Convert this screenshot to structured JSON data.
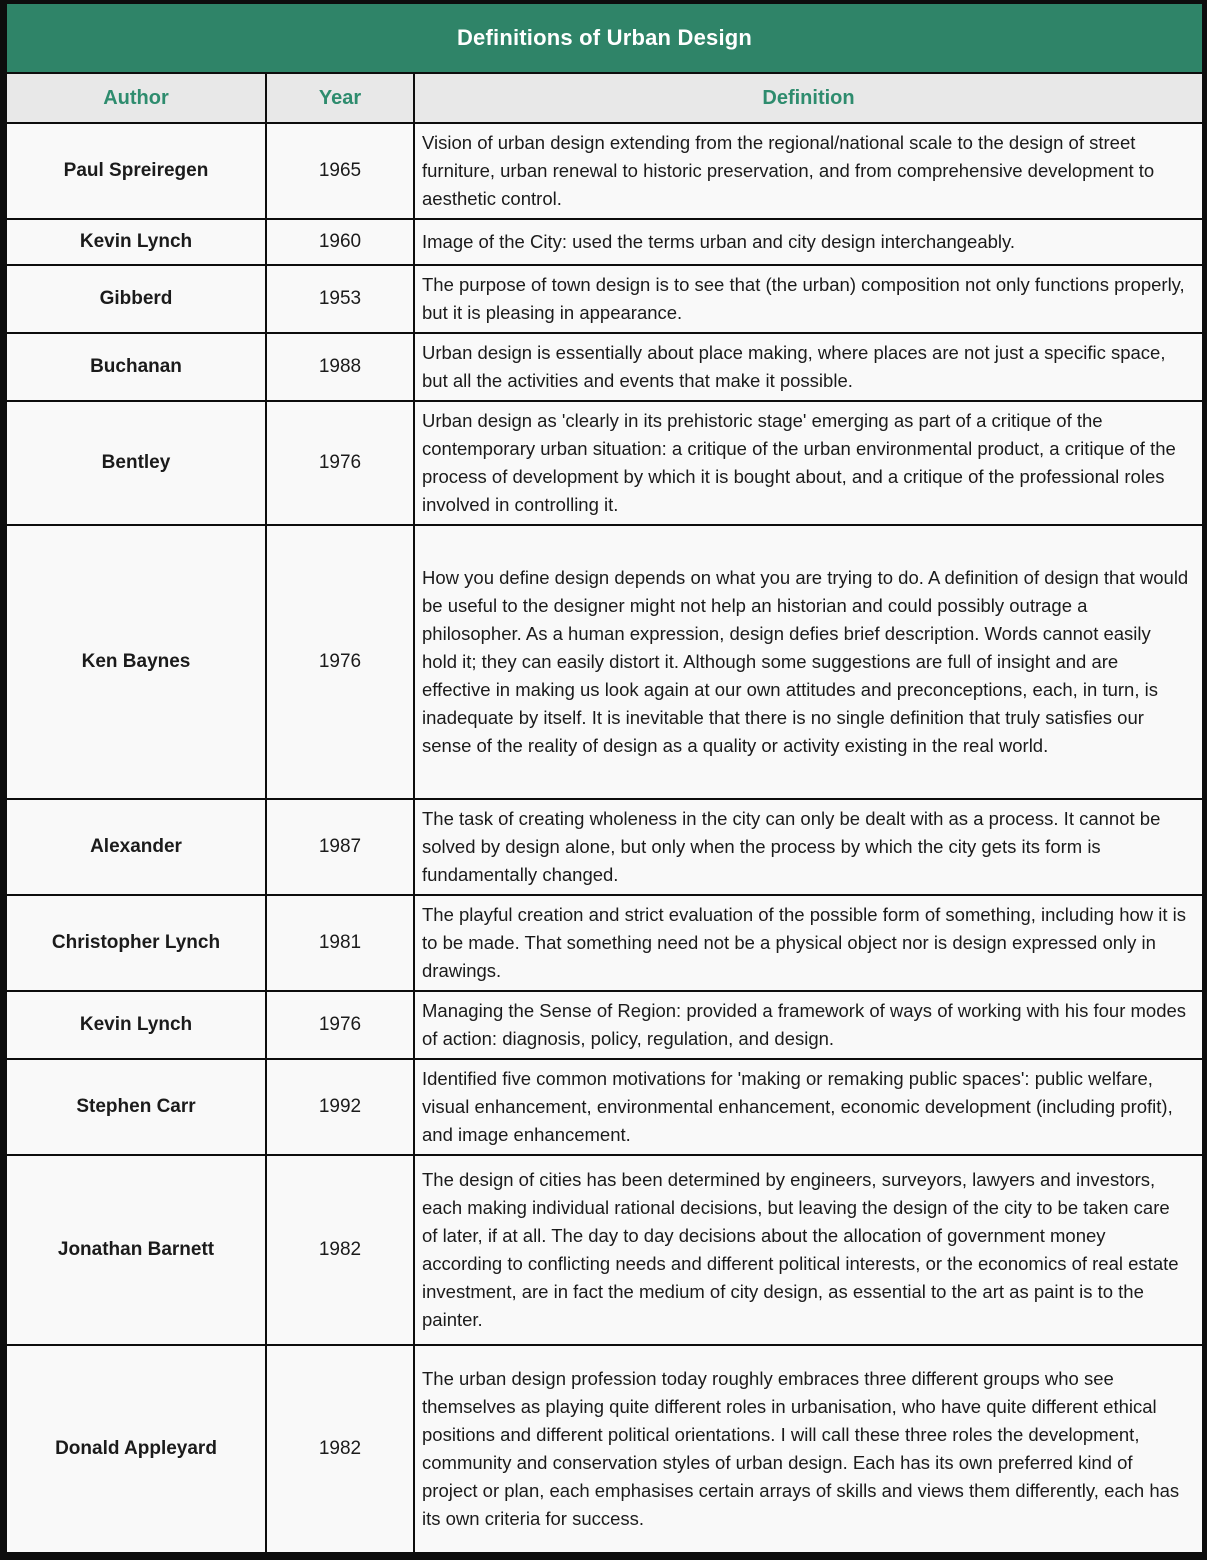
{
  "title": "Definitions of Urban Design",
  "columns": {
    "author": "Author",
    "year": "Year",
    "definition": "Definition"
  },
  "colors": {
    "title_bar_bg": "#2F8468",
    "title_text": "#FFFFFF",
    "header_text_green": "#2E8C6E",
    "header_row_bg": "#E8E8E8",
    "row_bg": "#F9F9F9",
    "grid_line": "#0D0D0D",
    "body_text": "#1B1B1B"
  },
  "rows": [
    {
      "author": "Paul Spreiregen",
      "year": "1965",
      "definition": "Vision of urban design extending from the regional/national scale to the design of street furniture, urban renewal to historic preservation, and from comprehensive development to aesthetic control."
    },
    {
      "author": "Kevin Lynch",
      "year": "1960",
      "definition": "Image of the City: used the terms urban and city design interchangeably."
    },
    {
      "author": "Gibberd",
      "year": "1953",
      "definition": "The purpose of town design is to see that (the urban) composition not only functions properly, but it is pleasing in appearance."
    },
    {
      "author": "Buchanan",
      "year": "1988",
      "definition": "Urban design is essentially about place making, where places are not just a specific space, but all the activities and events that make it possible."
    },
    {
      "author": "Bentley",
      "year": "1976",
      "definition": "Urban design as 'clearly in its prehistoric stage' emerging as part of a critique of the contemporary urban situation: a critique of the urban environmental product, a critique of the process of development by which it is bought about, and a critique of the professional roles involved in controlling it."
    },
    {
      "author": "Ken Baynes",
      "year": "1976",
      "definition": "How you define design depends on what you are trying to do. A definition of design that would be useful to the designer might not help an historian and could possibly outrage a philosopher. As a human expression, design defies brief description. Words cannot easily hold it; they can easily distort it. Although some suggestions are full of insight and are effective in making us look again at our own attitudes and preconceptions, each, in turn, is inadequate by itself. It is inevitable that there is no single definition that truly satisfies our sense of the reality of design as a quality or activity existing in the real world."
    },
    {
      "author": "Alexander",
      "year": "1987",
      "definition": "The task of creating wholeness in the city can only be dealt with as a process. It cannot be solved by design alone, but only when the process by which the city gets its form is fundamentally changed."
    },
    {
      "author": "Christopher Lynch",
      "year": "1981",
      "definition": "The playful creation and strict evaluation of the possible form of something, including how it is to be made. That something need not be a physical object nor is design expressed only in drawings."
    },
    {
      "author": "Kevin Lynch",
      "year": "1976",
      "definition": "Managing the Sense of Region: provided a framework of ways of working with his four modes of action: diagnosis, policy, regulation, and design."
    },
    {
      "author": "Stephen Carr",
      "year": "1992",
      "definition": "Identified five common motivations for 'making or remaking public spaces': public welfare, visual enhancement, environmental enhancement, economic development (including profit), and image enhancement."
    },
    {
      "author": "Jonathan Barnett",
      "year": "1982",
      "definition": "The design of cities has been determined by engineers, surveyors, lawyers and investors, each making individual rational decisions, but leaving the design of the city to be taken care of later, if at all. The day to day decisions about the allocation of government money according to conflicting needs and different political interests, or the economics of real estate investment, are in fact the medium of city design, as essential to the art as paint is to the painter."
    },
    {
      "author": "Donald Appleyard",
      "year": "1982",
      "definition": "The urban design profession today roughly embraces three different groups who see themselves as playing quite different roles in urbanisation, who have quite different ethical positions and different political orientations. I will call these three roles the development, community and conservation styles of urban design. Each has its own preferred kind of project or plan, each emphasises certain arrays of skills and views them differently, each has its own criteria for success."
    }
  ]
}
